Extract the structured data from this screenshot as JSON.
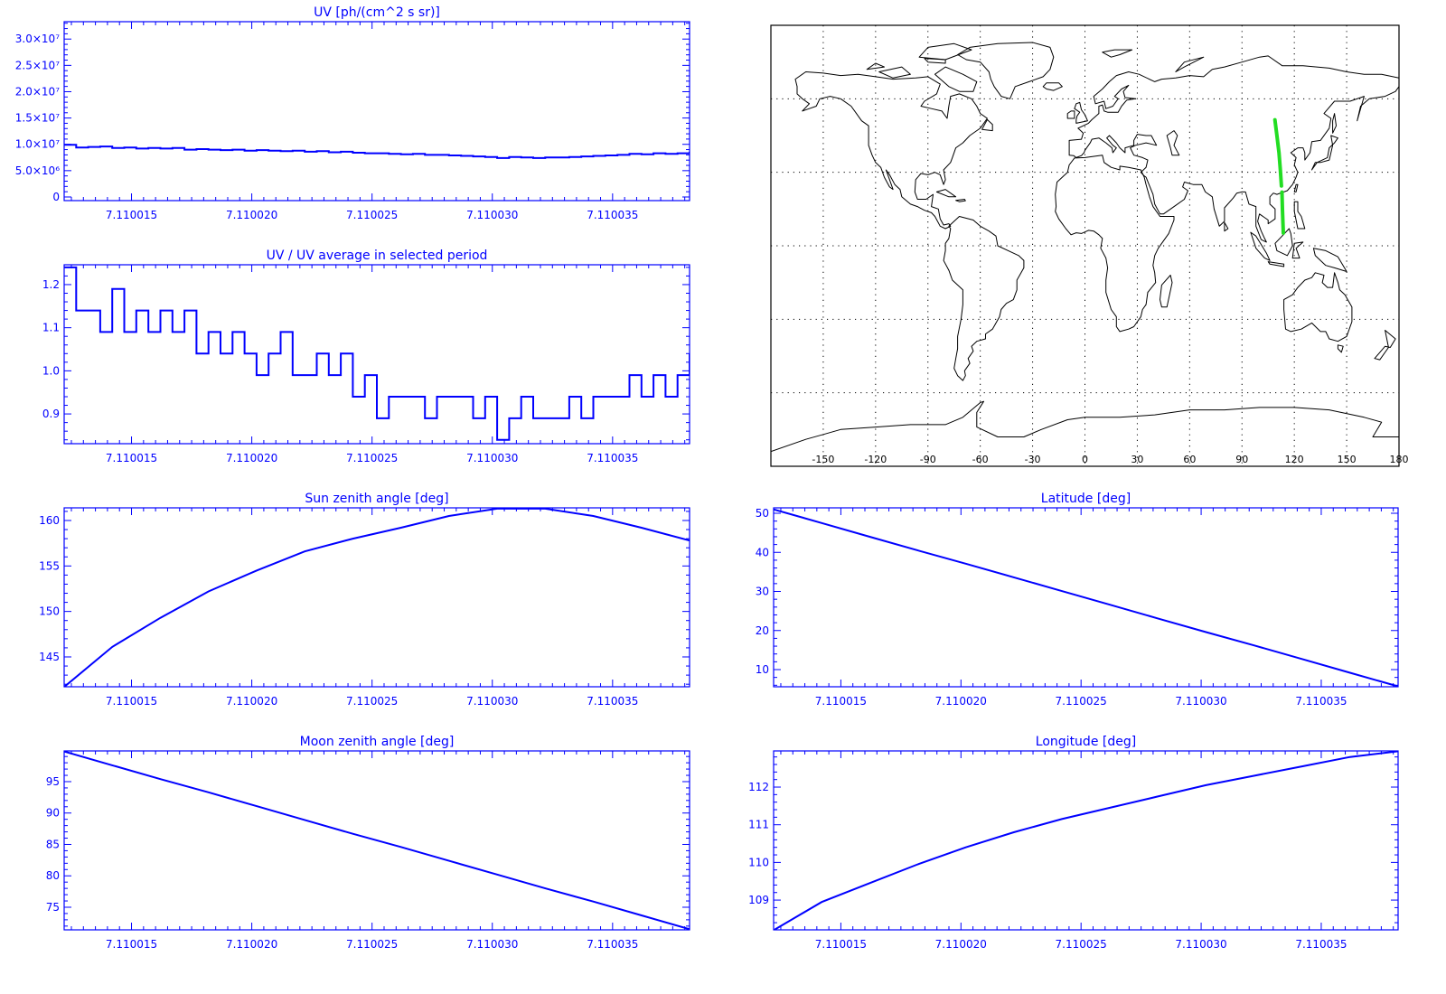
{
  "chart_data": [
    {
      "type": "line",
      "drawstyle": "steps",
      "title": "UV [ph/(cm^2 s sr)]",
      "color": "#0000ff",
      "xlim": [
        7.1100122,
        7.1100382
      ],
      "ylim": [
        -690000,
        33300000
      ],
      "xticks": [
        7.110015,
        7.11002,
        7.110025,
        7.11003,
        7.110035
      ],
      "xtick_labels": [
        "7.110015",
        "7.110020",
        "7.110025",
        "7.110030",
        "7.110035"
      ],
      "yticks": [
        0,
        5000000,
        10000000,
        15000000,
        20000000,
        25000000,
        30000000
      ],
      "ytick_labels": [
        "0",
        "5.0×10⁶",
        "1.0×10⁷",
        "1.5×10⁷",
        "2.0×10⁷",
        "2.5×10⁷",
        "3.0×10⁷"
      ],
      "x": [
        7.1100122,
        7.1100127,
        7.1100132,
        7.1100137,
        7.1100142,
        7.1100147,
        7.1100152,
        7.1100157,
        7.1100162,
        7.1100167,
        7.1100172,
        7.1100177,
        7.1100182,
        7.1100187,
        7.1100192,
        7.1100197,
        7.1100202,
        7.1100207,
        7.1100212,
        7.1100217,
        7.1100222,
        7.1100227,
        7.1100232,
        7.1100237,
        7.1100242,
        7.1100247,
        7.1100252,
        7.1100257,
        7.1100262,
        7.1100267,
        7.1100272,
        7.1100277,
        7.1100282,
        7.1100287,
        7.1100292,
        7.1100297,
        7.1100302,
        7.1100307,
        7.1100312,
        7.1100317,
        7.1100322,
        7.1100327,
        7.1100332,
        7.1100337,
        7.1100342,
        7.1100347,
        7.1100352,
        7.1100357,
        7.1100362,
        7.1100367,
        7.1100372,
        7.1100377,
        7.1100382
      ],
      "series": [
        {
          "values": [
            9900000,
            9400000,
            9500000,
            9600000,
            9300000,
            9400000,
            9200000,
            9300000,
            9200000,
            9300000,
            9000000,
            9100000,
            9000000,
            8900000,
            9000000,
            8800000,
            8900000,
            8800000,
            8700000,
            8800000,
            8600000,
            8700000,
            8500000,
            8600000,
            8400000,
            8300000,
            8300000,
            8200000,
            8100000,
            8200000,
            8000000,
            8000000,
            7900000,
            7800000,
            7700000,
            7600000,
            7400000,
            7600000,
            7500000,
            7400000,
            7500000,
            7500000,
            7600000,
            7700000,
            7800000,
            7900000,
            8000000,
            8200000,
            8100000,
            8300000,
            8200000,
            8300000,
            8600000
          ]
        }
      ]
    },
    {
      "type": "line",
      "drawstyle": "steps",
      "title": "UV / UV average in selected period",
      "color": "#0000ff",
      "xlim": [
        7.1100122,
        7.1100382
      ],
      "ylim": [
        0.831,
        1.246
      ],
      "xticks": [
        7.110015,
        7.11002,
        7.110025,
        7.11003,
        7.110035
      ],
      "xtick_labels": [
        "7.110015",
        "7.110020",
        "7.110025",
        "7.110030",
        "7.110035"
      ],
      "yticks": [
        0.9,
        1.0,
        1.1,
        1.2
      ],
      "ytick_labels": [
        "0.9",
        "1.0",
        "1.1",
        "1.2"
      ],
      "x": [
        7.1100122,
        7.1100127,
        7.1100132,
        7.1100137,
        7.1100142,
        7.1100147,
        7.1100152,
        7.1100157,
        7.1100162,
        7.1100167,
        7.1100172,
        7.1100177,
        7.1100182,
        7.1100187,
        7.1100192,
        7.1100197,
        7.1100202,
        7.1100207,
        7.1100212,
        7.1100217,
        7.1100222,
        7.1100227,
        7.1100232,
        7.1100237,
        7.1100242,
        7.1100247,
        7.1100252,
        7.1100257,
        7.1100262,
        7.1100267,
        7.1100272,
        7.1100277,
        7.1100282,
        7.1100287,
        7.1100292,
        7.1100297,
        7.1100302,
        7.1100307,
        7.1100312,
        7.1100317,
        7.1100322,
        7.1100327,
        7.1100332,
        7.1100337,
        7.1100342,
        7.1100347,
        7.1100352,
        7.1100357,
        7.1100362,
        7.1100367,
        7.1100372,
        7.1100377,
        7.1100382
      ],
      "series": [
        {
          "values": [
            1.24,
            1.14,
            1.14,
            1.09,
            1.19,
            1.09,
            1.14,
            1.09,
            1.14,
            1.09,
            1.14,
            1.04,
            1.09,
            1.04,
            1.09,
            1.04,
            0.99,
            1.04,
            1.09,
            0.99,
            0.99,
            1.04,
            0.99,
            1.04,
            0.94,
            0.99,
            0.89,
            0.94,
            0.94,
            0.94,
            0.89,
            0.94,
            0.94,
            0.94,
            0.89,
            0.94,
            0.84,
            0.89,
            0.94,
            0.89,
            0.89,
            0.89,
            0.94,
            0.89,
            0.94,
            0.94,
            0.94,
            0.99,
            0.94,
            0.99,
            0.94,
            0.99,
            1.04
          ]
        }
      ]
    },
    {
      "type": "line",
      "title": "Sun zenith angle [deg]",
      "color": "#0000ff",
      "xlim": [
        7.1100122,
        7.1100382
      ],
      "ylim": [
        141.72,
        161.39
      ],
      "xticks": [
        7.110015,
        7.11002,
        7.110025,
        7.11003,
        7.110035
      ],
      "xtick_labels": [
        "7.110015",
        "7.110020",
        "7.110025",
        "7.110030",
        "7.110035"
      ],
      "yticks": [
        145,
        150,
        155,
        160
      ],
      "ytick_labels": [
        "145",
        "150",
        "155",
        "160"
      ],
      "x": [
        7.1100122,
        7.1100142,
        7.1100162,
        7.1100182,
        7.1100202,
        7.1100222,
        7.1100242,
        7.1100262,
        7.1100282,
        7.1100302,
        7.1100322,
        7.1100342,
        7.1100362,
        7.1100382
      ],
      "series": [
        {
          "values": [
            141.7,
            146.1,
            149.3,
            152.2,
            154.5,
            156.6,
            158.0,
            159.2,
            160.5,
            161.3,
            161.3,
            160.5,
            159.2,
            157.8
          ]
        }
      ]
    },
    {
      "type": "line",
      "title": "Moon zenith angle [deg]",
      "color": "#0000ff",
      "xlim": [
        7.1100122,
        7.1100382
      ],
      "ylim": [
        71.4,
        99.89
      ],
      "xticks": [
        7.110015,
        7.11002,
        7.110025,
        7.11003,
        7.110035
      ],
      "xtick_labels": [
        "7.110015",
        "7.110020",
        "7.110025",
        "7.110030",
        "7.110035"
      ],
      "yticks": [
        75,
        80,
        85,
        90,
        95
      ],
      "ytick_labels": [
        "75",
        "80",
        "85",
        "90",
        "95"
      ],
      "x": [
        7.1100122,
        7.1100142,
        7.1100162,
        7.1100182,
        7.1100202,
        7.1100222,
        7.1100242,
        7.1100262,
        7.1100282,
        7.1100302,
        7.1100322,
        7.1100342,
        7.1100362,
        7.1100382
      ],
      "series": [
        {
          "values": [
            99.8,
            97.6,
            95.4,
            93.3,
            91.1,
            88.9,
            86.7,
            84.6,
            82.4,
            80.2,
            78.0,
            75.9,
            73.7,
            71.5
          ]
        }
      ]
    },
    {
      "type": "map",
      "grid": true,
      "color": "#000000",
      "track_color": "#22dd22",
      "xlim": [
        -180,
        180
      ],
      "ylim": [
        -90,
        90
      ],
      "xticks": [
        -150,
        -120,
        -90,
        -60,
        -30,
        0,
        30,
        60,
        90,
        120,
        150,
        180
      ],
      "xtick_labels": [
        "-150",
        "-120",
        "-90",
        "-60",
        "-30",
        "0",
        "30",
        "60",
        "90",
        "120",
        "150",
        "180"
      ],
      "series": [
        {
          "x": [
            108.9,
            110.0,
            111.2,
            112.0,
            112.6
          ],
          "y": [
            51.4,
            45.0,
            38.0,
            31.0,
            24.4
          ]
        },
        {
          "x": [
            112.9,
            113.2,
            113.5,
            113.7
          ],
          "y": [
            21.9,
            15.0,
            9.0,
            5.2
          ]
        }
      ]
    },
    {
      "type": "line",
      "title": "Latitude [deg]",
      "color": "#0000ff",
      "xlim": [
        7.1100122,
        7.1100382
      ],
      "ylim": [
        5.61,
        51.39
      ],
      "xticks": [
        7.110015,
        7.11002,
        7.110025,
        7.11003,
        7.110035
      ],
      "xtick_labels": [
        "7.110015",
        "7.110020",
        "7.110025",
        "7.110030",
        "7.110035"
      ],
      "yticks": [
        10,
        20,
        30,
        40,
        50
      ],
      "ytick_labels": [
        "10",
        "20",
        "30",
        "40",
        "50"
      ],
      "x": [
        7.1100122,
        7.1100142,
        7.1100162,
        7.1100182,
        7.1100202,
        7.1100222,
        7.1100242,
        7.1100262,
        7.1100282,
        7.1100302,
        7.1100322,
        7.1100342,
        7.1100362,
        7.1100382
      ],
      "series": [
        {
          "values": [
            51.0,
            47.5,
            44.0,
            40.5,
            37.1,
            33.6,
            30.1,
            26.6,
            23.1,
            19.6,
            16.2,
            12.7,
            9.2,
            5.7
          ]
        }
      ]
    },
    {
      "type": "line",
      "title": "Longitude [deg]",
      "color": "#0000ff",
      "xlim": [
        7.1100122,
        7.1100382
      ],
      "ylim": [
        108.21,
        112.96
      ],
      "xticks": [
        7.110015,
        7.11002,
        7.110025,
        7.11003,
        7.110035
      ],
      "xtick_labels": [
        "7.110015",
        "7.110020",
        "7.110025",
        "7.110030",
        "7.110035"
      ],
      "yticks": [
        109,
        110,
        111,
        112
      ],
      "ytick_labels": [
        "109",
        "110",
        "111",
        "112"
      ],
      "x": [
        7.1100122,
        7.1100142,
        7.1100162,
        7.1100182,
        7.1100202,
        7.1100222,
        7.1100242,
        7.1100262,
        7.1100282,
        7.1100302,
        7.1100322,
        7.1100342,
        7.1100362,
        7.1100382
      ],
      "series": [
        {
          "values": [
            108.2,
            108.95,
            109.45,
            109.95,
            110.4,
            110.8,
            111.15,
            111.45,
            111.75,
            112.05,
            112.3,
            112.55,
            112.8,
            112.95
          ]
        }
      ]
    }
  ]
}
